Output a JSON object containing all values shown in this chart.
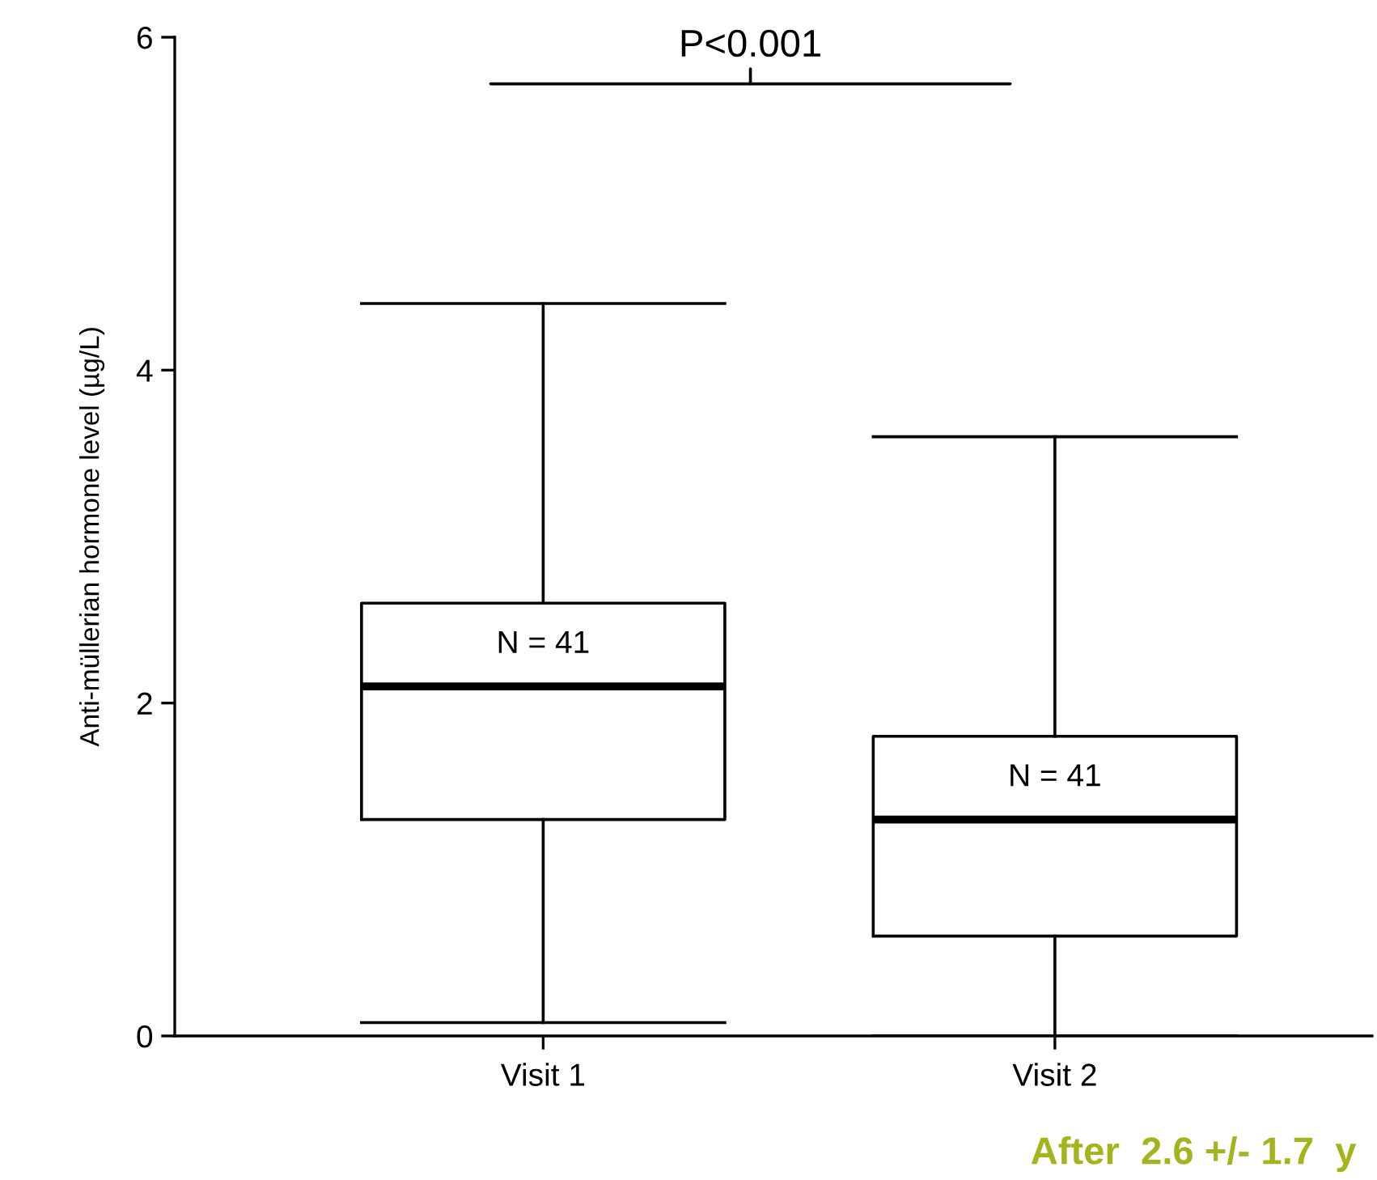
{
  "chart_data": {
    "type": "box",
    "ylabel": "Anti-müllerian hormone level (µg/L)",
    "categories": [
      "Visit 1",
      "Visit 2"
    ],
    "boxes": [
      {
        "low": 0.08,
        "q1": 1.3,
        "median": 2.1,
        "q3": 2.6,
        "high": 4.4
      },
      {
        "low": 0,
        "q1": 0.6,
        "median": 1.3,
        "q3": 1.8,
        "high": 3.6
      }
    ],
    "ylim": [
      0,
      6
    ],
    "yticks": [
      0,
      2,
      4,
      6
    ],
    "grid": false,
    "legend": false,
    "annotations": [
      "P<0.001",
      "N = 41",
      "N = 41",
      "After  2.6 +/- 1.7  y"
    ]
  }
}
